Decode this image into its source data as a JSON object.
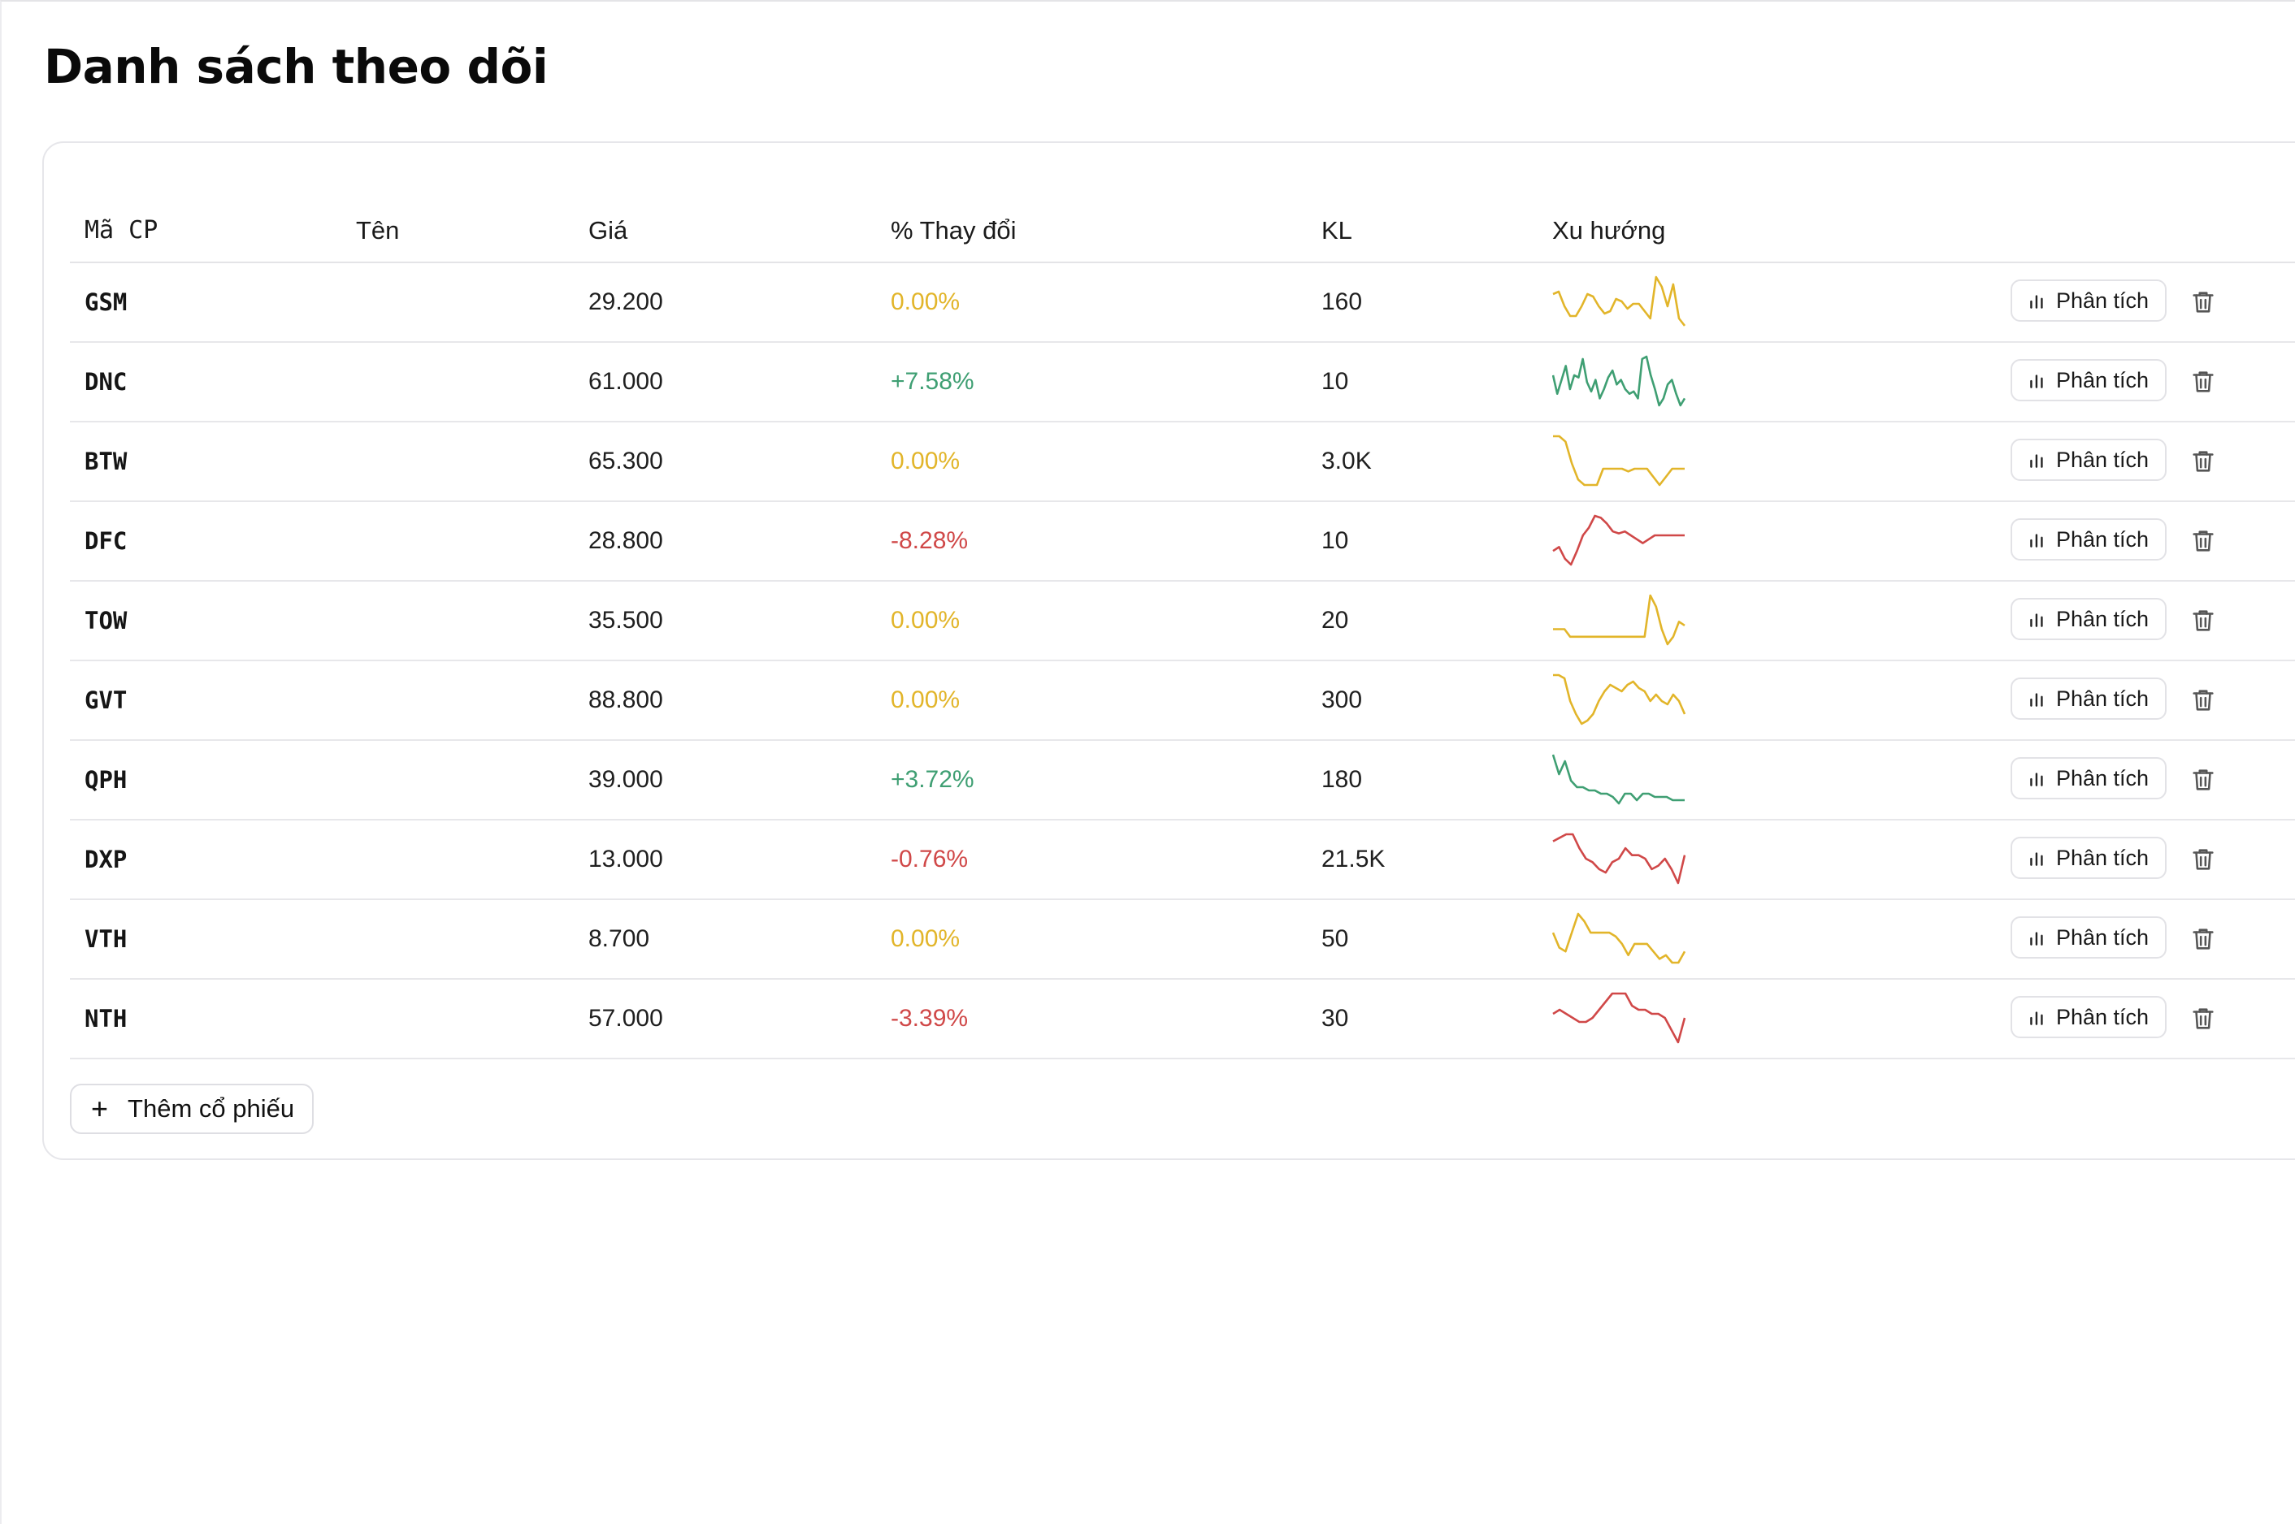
{
  "page": {
    "title": "Danh sách theo dõi"
  },
  "table": {
    "headers": {
      "symbol": "Mã CP",
      "name": "Tên",
      "price": "Giá",
      "change": "% Thay đổi",
      "volume": "KL",
      "trend": "Xu hướng"
    },
    "rows": [
      {
        "symbol": "GSM",
        "name": "",
        "price": "29.200",
        "change": "0.00%",
        "volume": "160",
        "status": "flat",
        "trend": [
          55,
          56,
          50,
          46,
          46,
          50,
          55,
          54,
          50,
          47,
          48,
          53,
          52,
          49,
          51,
          51,
          48,
          45,
          62,
          58,
          50,
          59,
          45,
          42
        ]
      },
      {
        "symbol": "DNC",
        "name": "",
        "price": "61.000",
        "change": "+7.58%",
        "volume": "10",
        "status": "up",
        "trend": [
          48,
          40,
          46,
          52,
          42,
          48,
          47,
          55,
          45,
          41,
          46,
          38,
          42,
          47,
          50,
          44,
          46,
          42,
          40,
          41,
          38,
          55,
          56,
          48,
          42,
          35,
          38,
          44,
          46,
          40,
          35,
          38
        ]
      },
      {
        "symbol": "BTW",
        "name": "",
        "price": "65.300",
        "change": "0.00%",
        "volume": "3.0K",
        "status": "flat",
        "trend": [
          58,
          58,
          56,
          48,
          42,
          40,
          40,
          40,
          46,
          46,
          46,
          46,
          45,
          46,
          46,
          46,
          43,
          40,
          43,
          46,
          46,
          46
        ]
      },
      {
        "symbol": "DFC",
        "name": "",
        "price": "28.800",
        "change": "-8.28%",
        "volume": "10",
        "status": "down",
        "trend": [
          38,
          40,
          34,
          31,
          38,
          46,
          50,
          56,
          55,
          52,
          48,
          47,
          48,
          46,
          44,
          42,
          44,
          46,
          46,
          46,
          46,
          46,
          46
        ]
      },
      {
        "symbol": "TOW",
        "name": "",
        "price": "35.500",
        "change": "0.00%",
        "volume": "20",
        "status": "flat",
        "trend": [
          46,
          46,
          46,
          44,
          44,
          44,
          44,
          44,
          44,
          44,
          44,
          44,
          44,
          44,
          44,
          44,
          44,
          55,
          52,
          46,
          42,
          44,
          48,
          47
        ]
      },
      {
        "symbol": "GVT",
        "name": "",
        "price": "88.800",
        "change": "0.00%",
        "volume": "300",
        "status": "flat",
        "trend": [
          58,
          58,
          57,
          50,
          46,
          43,
          44,
          46,
          50,
          53,
          55,
          54,
          53,
          55,
          56,
          54,
          53,
          50,
          52,
          50,
          49,
          52,
          50,
          46
        ]
      },
      {
        "symbol": "QPH",
        "name": "",
        "price": "39.000",
        "change": "+3.72%",
        "volume": "180",
        "status": "up",
        "trend": [
          58,
          52,
          56,
          50,
          48,
          48,
          47,
          47,
          46,
          46,
          45,
          43,
          46,
          46,
          44,
          46,
          46,
          45,
          45,
          45,
          44,
          44,
          44
        ]
      },
      {
        "symbol": "DXP",
        "name": "",
        "price": "13.000",
        "change": "-0.76%",
        "volume": "21.5K",
        "status": "down",
        "trend": [
          52,
          53,
          54,
          54,
          50,
          47,
          46,
          44,
          43,
          46,
          47,
          50,
          48,
          48,
          47,
          44,
          45,
          47,
          44,
          40,
          48
        ]
      },
      {
        "symbol": "VTH",
        "name": "",
        "price": "8.700",
        "change": "0.00%",
        "volume": "50",
        "status": "flat",
        "trend": [
          50,
          46,
          45,
          50,
          55,
          53,
          50,
          50,
          50,
          50,
          49,
          47,
          44,
          47,
          47,
          47,
          45,
          43,
          44,
          42,
          42,
          45
        ]
      },
      {
        "symbol": "NTH",
        "name": "",
        "price": "57.000",
        "change": "-3.39%",
        "volume": "30",
        "status": "down",
        "trend": [
          51,
          52,
          51,
          50,
          49,
          49,
          50,
          52,
          54,
          56,
          56,
          56,
          53,
          52,
          52,
          51,
          51,
          50,
          47,
          44,
          50
        ]
      }
    ],
    "analyze_label": "Phân tích"
  },
  "add_button": {
    "label": "Thêm cổ phiếu"
  },
  "colors": {
    "up": "#3f9f73",
    "down": "#d04848",
    "flat": "#e2b52a",
    "border": "#e6e6ea"
  },
  "icons": {
    "analyze": "bar-chart-icon",
    "delete": "trash-icon",
    "add": "plus-icon"
  }
}
